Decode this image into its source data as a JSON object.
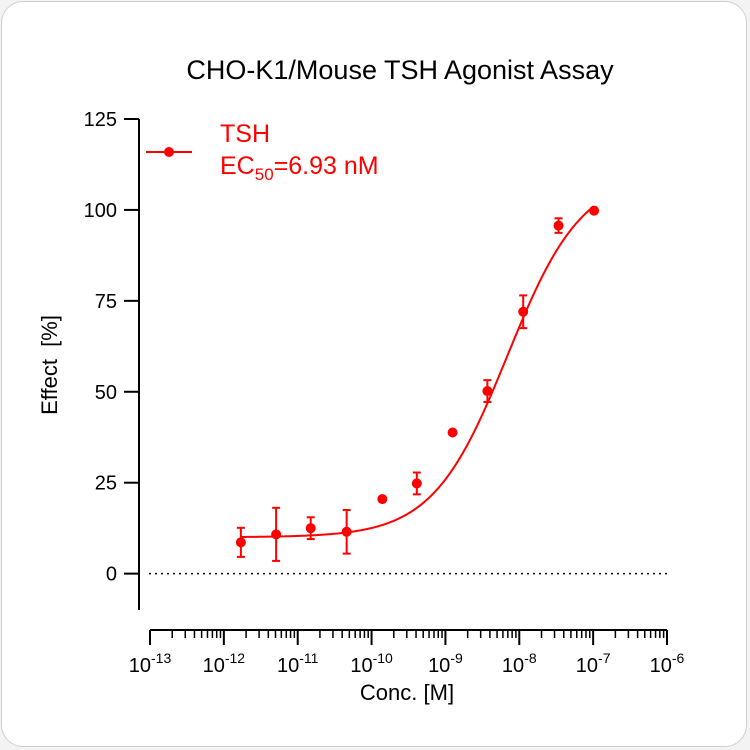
{
  "colors": {
    "series": "#ff0000",
    "axis": "#000000",
    "text": "#000000"
  },
  "chart_data": {
    "type": "scatter",
    "title": "CHO-K1/Mouse TSH Agonist Assay",
    "xlabel": "Conc. [M]",
    "ylabel": "Effect  [%]",
    "x_scale": "log",
    "xlim": [
      1e-13,
      1e-06
    ],
    "ylim": [
      -10,
      125
    ],
    "x_ticks": [
      {
        "base": "10",
        "exp": "-13"
      },
      {
        "base": "10",
        "exp": "-12"
      },
      {
        "base": "10",
        "exp": "-11"
      },
      {
        "base": "10",
        "exp": "-10"
      },
      {
        "base": "10",
        "exp": "-9"
      },
      {
        "base": "10",
        "exp": "-8"
      },
      {
        "base": "10",
        "exp": "-7"
      },
      {
        "base": "10",
        "exp": "-6"
      }
    ],
    "y_ticks": [
      "0",
      "25",
      "50",
      "75",
      "100",
      "125"
    ],
    "baseline": 0,
    "legend": {
      "position": "top-left",
      "name_line": "TSH",
      "ec_prefix": "EC",
      "ec_subscript": "50",
      "ec_suffix": "=6.93 nM"
    },
    "series": [
      {
        "name": "TSH",
        "color": "#ff0000",
        "points": [
          {
            "x": 1.7e-12,
            "y": 8.6,
            "err": 4.0
          },
          {
            "x": 5.1e-12,
            "y": 10.8,
            "err": 7.3
          },
          {
            "x": 1.5e-11,
            "y": 12.5,
            "err": 3.0
          },
          {
            "x": 4.6e-11,
            "y": 11.5,
            "err": 6.0
          },
          {
            "x": 1.4e-10,
            "y": 20.5,
            "err": 0
          },
          {
            "x": 4.1e-10,
            "y": 24.8,
            "err": 3.0
          },
          {
            "x": 1.25e-09,
            "y": 38.8,
            "err": 0
          },
          {
            "x": 3.7e-09,
            "y": 50.2,
            "err": 3.0
          },
          {
            "x": 1.13e-08,
            "y": 72.0,
            "err": 4.5
          },
          {
            "x": 3.4e-08,
            "y": 95.7,
            "err": 2.0
          },
          {
            "x": 1.03e-07,
            "y": 99.8,
            "err": 0
          }
        ],
        "fit": {
          "bottom": 10.0,
          "top": 110.0,
          "ec50": 6.93e-09,
          "hill": 0.86,
          "x_range": [
            1.7e-12,
            1e-07
          ]
        }
      }
    ]
  }
}
